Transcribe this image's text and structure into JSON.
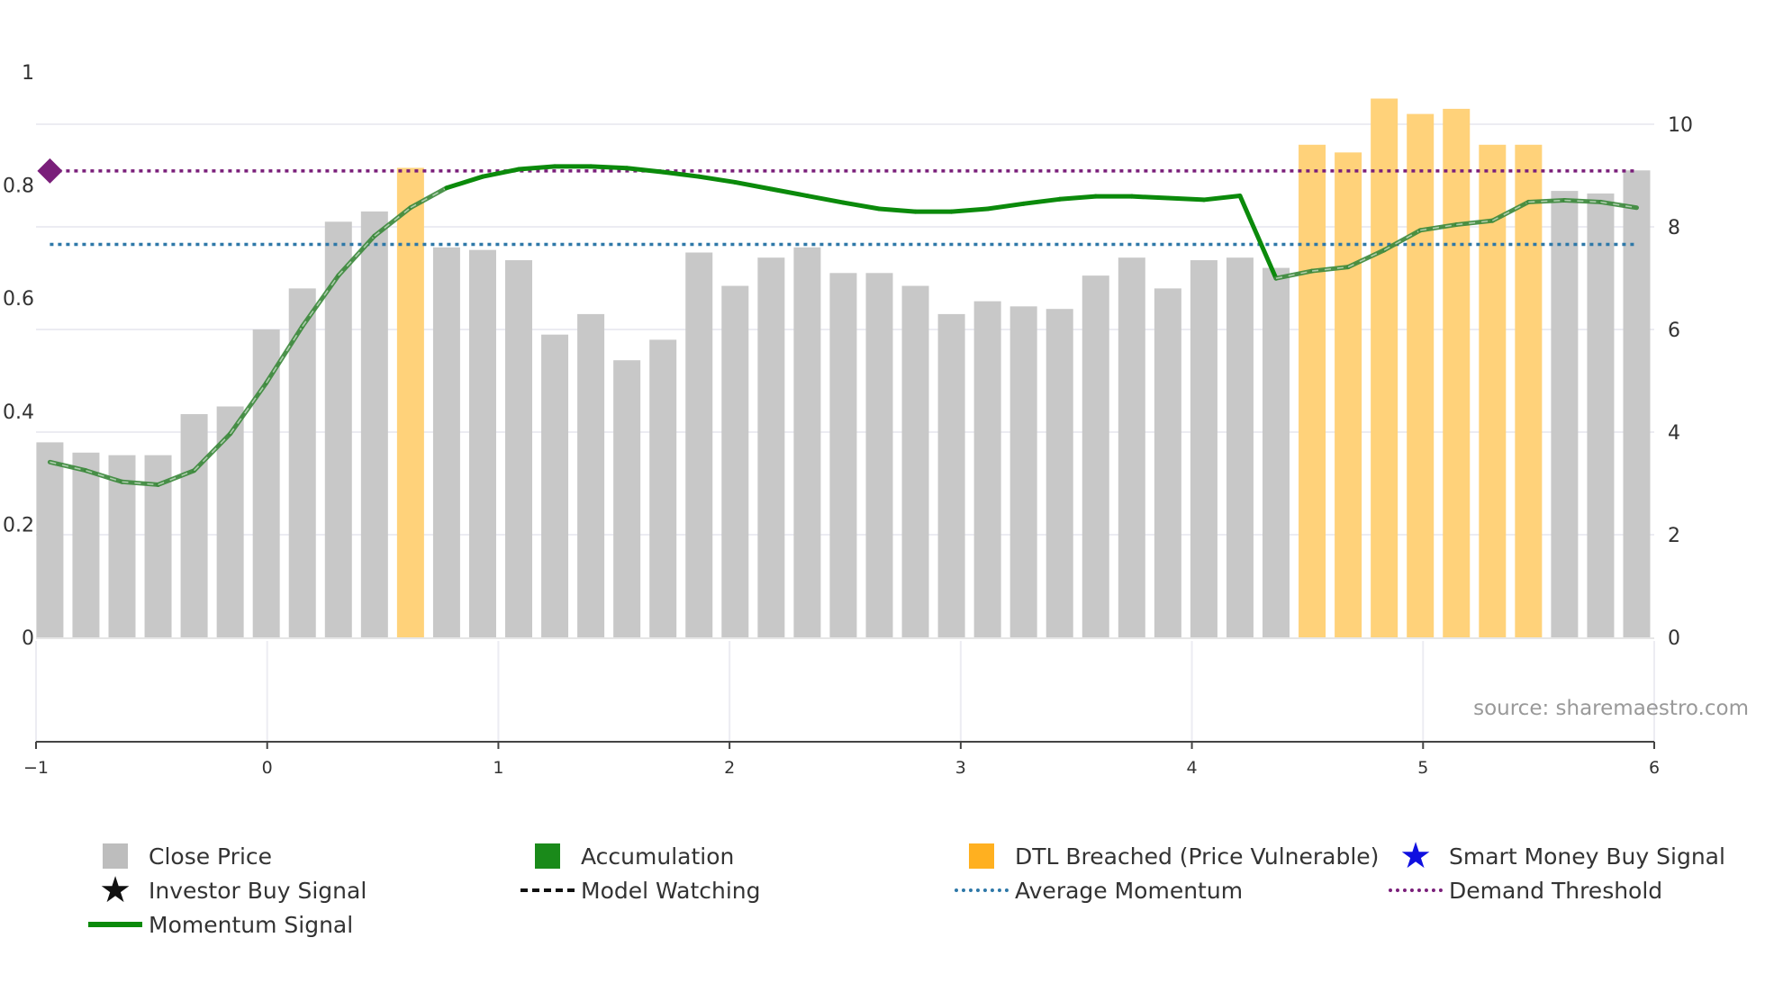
{
  "chart_data": {
    "type": "bar",
    "title": "",
    "source_label": "source: sharemaestro.com",
    "left_axis": {
      "ticks": [
        "0",
        "0.2",
        "0.4",
        "0.6",
        "0.8",
        "1"
      ],
      "range": [
        0,
        1
      ]
    },
    "right_axis": {
      "ticks": [
        "0",
        "2",
        "4",
        "6",
        "8",
        "10"
      ],
      "range": [
        0,
        10.5
      ]
    },
    "x_axis": {
      "ticks": [
        "−1",
        "0",
        "1",
        "2",
        "3",
        "4",
        "5",
        "6"
      ],
      "range": [
        -1,
        6
      ]
    },
    "close_price": {
      "name": "Close Price",
      "x_start": -0.94,
      "x_step": 0.156,
      "values": [
        3.8,
        3.6,
        3.55,
        3.55,
        4.35,
        4.5,
        6.0,
        6.8,
        8.1,
        8.3,
        9.15,
        7.6,
        7.55,
        7.35,
        5.9,
        6.3,
        5.4,
        5.8,
        7.5,
        6.85,
        7.4,
        7.6,
        7.1,
        7.1,
        6.85,
        6.3,
        6.55,
        6.45,
        6.4,
        7.05,
        7.4,
        6.8,
        7.35,
        7.4,
        7.2,
        9.6,
        9.45,
        10.5,
        10.2,
        10.3,
        9.6,
        9.6,
        8.7,
        8.65,
        9.1
      ],
      "status": [
        "g",
        "g",
        "g",
        "g",
        "g",
        "g",
        "g",
        "g",
        "g",
        "g",
        "o",
        "g",
        "g",
        "g",
        "g",
        "g",
        "g",
        "g",
        "g",
        "g",
        "g",
        "g",
        "g",
        "g",
        "g",
        "g",
        "g",
        "g",
        "g",
        "g",
        "g",
        "g",
        "g",
        "g",
        "g",
        "o",
        "o",
        "o",
        "o",
        "o",
        "o",
        "o",
        "g",
        "g",
        "g"
      ]
    },
    "momentum_signal": {
      "name": "Momentum Signal",
      "values": [
        0.31,
        0.295,
        0.275,
        0.27,
        0.295,
        0.36,
        0.45,
        0.55,
        0.64,
        0.71,
        0.76,
        0.795,
        0.815,
        0.828,
        0.833,
        0.833,
        0.83,
        0.823,
        0.815,
        0.805,
        0.793,
        0.781,
        0.769,
        0.758,
        0.753,
        0.753,
        0.758,
        0.767,
        0.775,
        0.78,
        0.78,
        0.777,
        0.774,
        0.781,
        0.635,
        0.648,
        0.655,
        0.685,
        0.72,
        0.73,
        0.737,
        0.77,
        0.773,
        0.77,
        0.76
      ],
      "mode": [
        "w",
        "w",
        "w",
        "w",
        "w",
        "w",
        "w",
        "w",
        "w",
        "w",
        "w",
        "a",
        "a",
        "a",
        "a",
        "a",
        "a",
        "a",
        "a",
        "a",
        "a",
        "a",
        "a",
        "a",
        "a",
        "a",
        "a",
        "a",
        "a",
        "a",
        "a",
        "a",
        "a",
        "a",
        "w",
        "w",
        "w",
        "w",
        "w",
        "w",
        "w",
        "w",
        "w",
        "w",
        "w"
      ]
    },
    "average_momentum": {
      "name": "Average Momentum",
      "value": 0.695
    },
    "demand_threshold": {
      "name": "Demand Threshold",
      "value": 0.825
    },
    "colors": {
      "close_price": "#c8c8c8",
      "dtl_breached": "#ffd27a",
      "accumulation": "#0b8a0b",
      "model_watching": "#1c1c1c",
      "average_momentum": "#2e78a8",
      "demand_threshold": "#7a1f7a",
      "grid": "#ececf2"
    },
    "legend": [
      {
        "label": "Close Price",
        "symbol": "square-gray"
      },
      {
        "label": "Accumulation",
        "symbol": "square-green"
      },
      {
        "label": "DTL Breached (Price Vulnerable)",
        "symbol": "square-orange"
      },
      {
        "label": "Smart Money Buy Signal",
        "symbol": "star-blue"
      },
      {
        "label": "Investor Buy Signal",
        "symbol": "star-black"
      },
      {
        "label": "Model Watching",
        "symbol": "dash-black"
      },
      {
        "label": "Average Momentum",
        "symbol": "dot-blue"
      },
      {
        "label": "Demand Threshold",
        "symbol": "dot-purple"
      },
      {
        "label": "Momentum Signal",
        "symbol": "line-green"
      }
    ]
  }
}
